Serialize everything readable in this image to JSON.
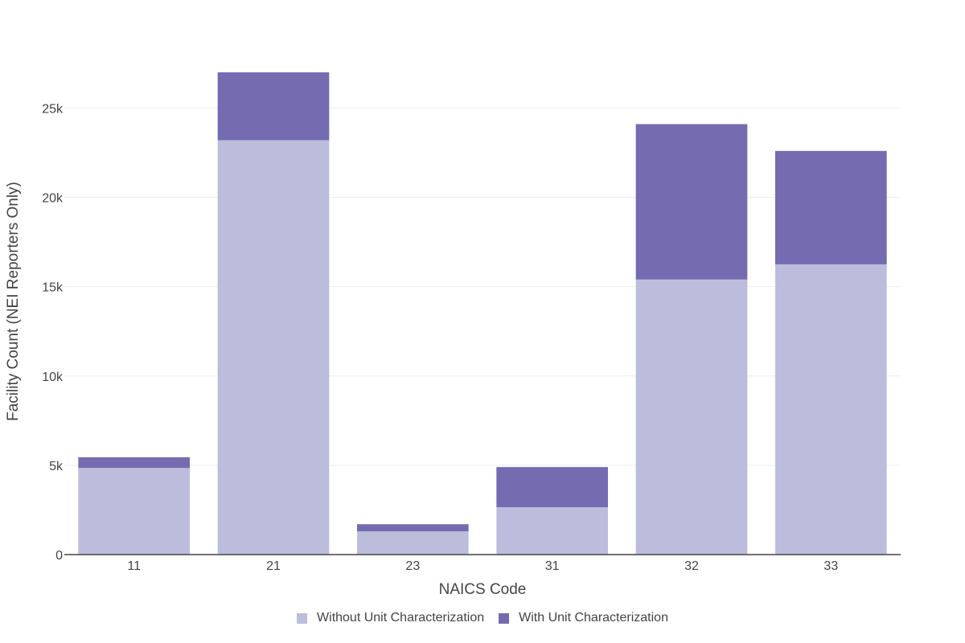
{
  "chart_data": {
    "type": "bar",
    "stacked": true,
    "categories": [
      "11",
      "21",
      "23",
      "31",
      "32",
      "33"
    ],
    "series": [
      {
        "name": "Without Unit Characterization",
        "color": "#bcbddc",
        "values": [
          4850,
          23200,
          1300,
          2650,
          15400,
          16250
        ]
      },
      {
        "name": "With Unit Characterization",
        "color": "#756bb1",
        "values": [
          600,
          3800,
          400,
          2250,
          8700,
          6350
        ]
      }
    ],
    "xlabel": "NAICS Code",
    "ylabel": "Facility Count (NEI Reporters Only)",
    "ylim": [
      0,
      27000
    ],
    "yticks": [
      0,
      5000,
      10000,
      15000,
      20000,
      25000
    ],
    "ytick_labels": [
      "0",
      "5k",
      "10k",
      "15k",
      "20k",
      "25k"
    ],
    "grid": true,
    "legend_position": "bottom-center"
  }
}
